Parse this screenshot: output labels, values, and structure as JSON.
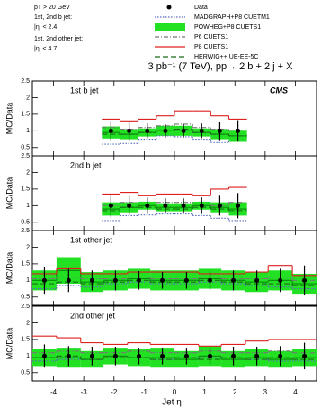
{
  "chart_data": {
    "type": "step",
    "title": "3 pb⁻¹ (7 TeV), pp→ 2 b + 2 j + X",
    "annotations": [
      "pT > 20 GeV",
      "1st, 2nd b jet:",
      "|η| < 2.4",
      "1st, 2nd other jet:",
      "|η| < 4.7"
    ],
    "cms_label": "CMS",
    "ylabel": "MC/Data",
    "xlabel": "Jet η",
    "xlim": [
      -4.7,
      4.7
    ],
    "xticks": [
      -4,
      -3,
      -2,
      -1,
      0,
      1,
      2,
      3,
      4
    ],
    "ylim": [
      0.25,
      2.5
    ],
    "yticks": [
      0.5,
      1,
      1.5,
      2,
      2.5
    ],
    "data_series": {
      "name": "Data",
      "color": "#000000"
    },
    "series": [
      {
        "name": "MADGRAPH+P8 CUETM1",
        "color": "#5a6cc0",
        "style": "dotted"
      },
      {
        "name": "POWHEG+P8 CUETS1",
        "color": "#22e022",
        "style": "band"
      },
      {
        "name": "P6 CUETS1",
        "color": "#777777",
        "style": "dashdot"
      },
      {
        "name": "P8 CUETS1",
        "color": "#dd2020",
        "style": "solid"
      },
      {
        "name": "HERWIG++ UE-EE-5C",
        "color": "#1a6b1a",
        "style": "dashed"
      }
    ],
    "panels": [
      {
        "label": "1st b jet",
        "bins": [
          -2.4,
          -1.8,
          -1.2,
          -0.6,
          0,
          0.6,
          1.2,
          1.8,
          2.4
        ],
        "data": {
          "values": [
            1,
            1,
            1,
            1,
            1,
            1,
            1,
            1
          ],
          "errors": [
            0.3,
            0.28,
            0.22,
            0.2,
            0.2,
            0.22,
            0.28,
            0.32
          ]
        },
        "mc": [
          [
            0.6,
            0.62,
            0.75,
            0.85,
            0.82,
            0.75,
            0.65,
            0.7
          ],
          [
            0.95,
            0.9,
            0.95,
            1.0,
            1.0,
            0.95,
            0.9,
            0.85
          ],
          [
            1.1,
            1.05,
            1.1,
            1.15,
            1.2,
            1.1,
            1.05,
            1.0
          ],
          [
            1.35,
            1.3,
            1.35,
            1.45,
            1.6,
            1.6,
            1.45,
            1.35
          ],
          [
            0.9,
            0.9,
            0.95,
            1.0,
            1.05,
            0.95,
            0.9,
            0.85
          ]
        ],
        "band_errors": [
          0.18,
          0.15,
          0.12,
          0.15,
          0.15,
          0.12,
          0.15,
          0.18
        ]
      },
      {
        "label": "2nd b jet",
        "bins": [
          -2.4,
          -1.8,
          -1.2,
          -0.6,
          0,
          0.6,
          1.2,
          1.8,
          2.4
        ],
        "data": {
          "values": [
            1,
            1,
            1,
            1,
            1,
            1,
            1,
            1
          ],
          "errors": [
            0.35,
            0.3,
            0.25,
            0.22,
            0.22,
            0.25,
            0.3,
            0.38
          ]
        },
        "mc": [
          [
            0.55,
            0.7,
            0.72,
            0.75,
            0.75,
            0.7,
            0.62,
            0.55
          ],
          [
            0.9,
            0.95,
            1.0,
            0.95,
            0.95,
            1.0,
            0.95,
            0.9
          ],
          [
            1.0,
            1.1,
            1.05,
            1.1,
            1.1,
            1.05,
            1.0,
            1.1
          ],
          [
            1.35,
            1.4,
            1.3,
            1.35,
            1.35,
            1.3,
            1.5,
            1.55
          ],
          [
            0.85,
            0.95,
            0.95,
            0.9,
            0.9,
            0.95,
            0.9,
            0.85
          ]
        ],
        "band_errors": [
          0.2,
          0.15,
          0.12,
          0.12,
          0.12,
          0.12,
          0.15,
          0.2
        ]
      },
      {
        "label": "1st other jet",
        "bins": [
          -4.7,
          -3.9,
          -3.1,
          -2.35,
          -1.55,
          -0.8,
          0,
          0.8,
          1.55,
          2.35,
          3.1,
          3.9,
          4.7
        ],
        "data": {
          "values": [
            1,
            1,
            1,
            1,
            1,
            1,
            1,
            1,
            1,
            1,
            1,
            1
          ],
          "errors": [
            0.4,
            0.35,
            0.3,
            0.3,
            0.28,
            0.25,
            0.25,
            0.28,
            0.3,
            0.3,
            0.35,
            0.45
          ]
        },
        "mc": [
          [
            0.75,
            0.85,
            0.8,
            0.9,
            0.95,
            0.9,
            0.9,
            0.95,
            0.9,
            0.85,
            0.8,
            0.75
          ],
          [
            1.0,
            1.3,
            0.95,
            1.0,
            1.05,
            1.0,
            1.0,
            1.05,
            1.0,
            0.95,
            1.0,
            0.9
          ],
          [
            1.05,
            1.1,
            1.05,
            1.05,
            1.1,
            1.05,
            1.05,
            1.1,
            1.05,
            1.05,
            1.1,
            1.0
          ],
          [
            1.2,
            1.35,
            1.2,
            1.2,
            1.25,
            1.25,
            1.25,
            1.2,
            1.2,
            1.25,
            1.45,
            1.15
          ],
          [
            0.9,
            0.95,
            0.9,
            0.95,
            1.0,
            0.95,
            0.95,
            1.0,
            0.95,
            0.9,
            0.9,
            0.85
          ]
        ],
        "band_errors": [
          0.3,
          0.4,
          0.3,
          0.3,
          0.3,
          0.3,
          0.3,
          0.3,
          0.3,
          0.3,
          0.3,
          0.3
        ]
      },
      {
        "label": "2nd other jet",
        "bins": [
          -4.7,
          -3.9,
          -3.1,
          -2.35,
          -1.55,
          -0.8,
          0,
          0.8,
          1.55,
          2.35,
          3.1,
          3.9,
          4.7
        ],
        "data": {
          "values": [
            1,
            1,
            1,
            1,
            1,
            1,
            1,
            1,
            1,
            1,
            1,
            1
          ],
          "errors": [
            0.35,
            0.3,
            0.28,
            0.28,
            0.25,
            0.25,
            0.25,
            0.25,
            0.28,
            0.28,
            0.3,
            0.4
          ]
        },
        "mc": [
          [
            0.85,
            0.9,
            0.9,
            0.95,
            0.95,
            0.9,
            0.95,
            0.95,
            0.9,
            0.9,
            0.85,
            0.85
          ],
          [
            0.95,
            0.95,
            0.9,
            1.0,
            0.95,
            0.95,
            0.9,
            1.0,
            0.9,
            0.95,
            0.9,
            0.95
          ],
          [
            1.1,
            1.15,
            1.1,
            1.1,
            1.15,
            1.1,
            1.1,
            1.15,
            1.1,
            1.1,
            1.15,
            1.1
          ],
          [
            1.6,
            1.55,
            1.4,
            1.35,
            1.4,
            1.35,
            1.35,
            1.3,
            1.35,
            1.45,
            1.5,
            1.5
          ],
          [
            0.95,
            1.0,
            0.9,
            0.95,
            0.95,
            0.9,
            0.95,
            0.9,
            0.95,
            0.9,
            0.95,
            0.9
          ]
        ],
        "band_errors": [
          0.25,
          0.3,
          0.25,
          0.25,
          0.25,
          0.3,
          0.25,
          0.3,
          0.25,
          0.25,
          0.25,
          0.25
        ]
      }
    ]
  }
}
